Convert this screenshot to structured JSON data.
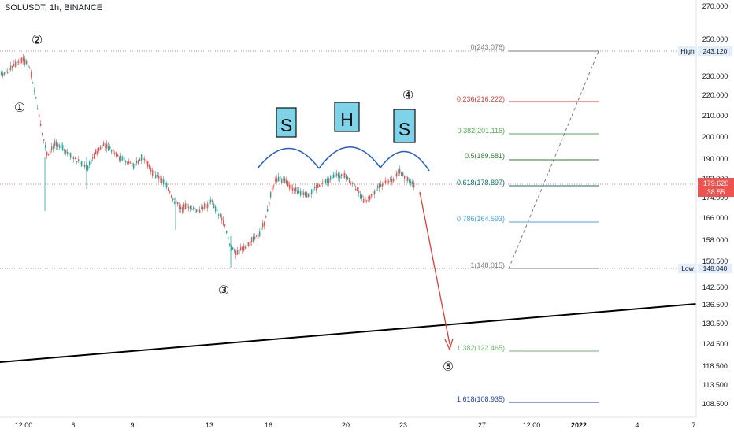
{
  "symbol_title": "SOLUSDT, 1h, BINANCE",
  "colors": {
    "candle_up": "#26a69a",
    "candle_down": "#ef5350",
    "fib_0": "#787b86",
    "fib_0236": "#e53935",
    "fib_0382": "#4caf50",
    "fib_05": "#2e7d32",
    "fib_0618": "#00796b",
    "fib_0786": "#42a5f5",
    "fib_1": "#787b86",
    "fib_1382": "#66bb6a",
    "fib_1618": "#1e40af",
    "price_line": "#ef5350",
    "hs_arc": "#1e5bd6",
    "hs_box": "#7fd3e8",
    "projection_arrow": "#e53935",
    "trendline": "#000000"
  },
  "price_axis": {
    "ticks": [
      "270.000",
      "250.000",
      "230.000",
      "220.000",
      "210.000",
      "200.000",
      "190.000",
      "182.000",
      "174.000",
      "166.000",
      "158.000",
      "150.500",
      "142.500",
      "136.500",
      "130.500",
      "124.500",
      "118.500",
      "113.500",
      "108.500"
    ],
    "high_label": "High",
    "high_value": "243.120",
    "low_label": "Low",
    "low_value": "148.040",
    "current_price": "179.620",
    "countdown": "38:55"
  },
  "time_axis": {
    "labels": [
      "12:00",
      "6",
      "9",
      "13",
      "16",
      "20",
      "23",
      "27",
      "12:00",
      "2022",
      "4",
      "7"
    ]
  },
  "fib_levels": [
    {
      "label": "0(243.076)",
      "color_key": "fib_0"
    },
    {
      "label": "0.236(216.222)",
      "color_key": "fib_0236"
    },
    {
      "label": "0.382(201.116)",
      "color_key": "fib_0382"
    },
    {
      "label": "0.5(189.681)",
      "color_key": "fib_05"
    },
    {
      "label": "0.618(178.897)",
      "color_key": "fib_0618"
    },
    {
      "label": "0.786(164.593)",
      "color_key": "fib_0786"
    },
    {
      "label": "1(148.015)",
      "color_key": "fib_1"
    },
    {
      "label": "1.382(122.465)",
      "color_key": "fib_1382"
    },
    {
      "label": "1.618(108.935)",
      "color_key": "fib_1618"
    }
  ],
  "wave_labels": [
    "①",
    "②",
    "③",
    "④",
    "⑤"
  ],
  "pattern_letters": [
    "S",
    "H",
    "S"
  ],
  "icons": {
    "projection_arrow": "arrow-down-icon",
    "wave_marker": "circled-number-icon"
  }
}
